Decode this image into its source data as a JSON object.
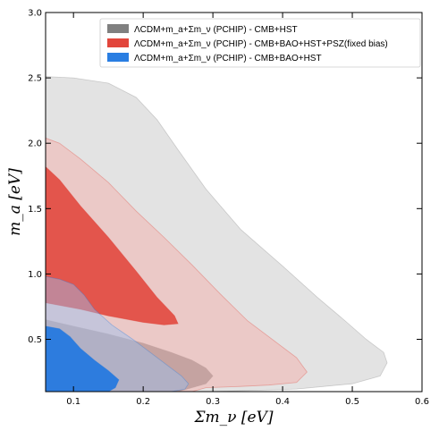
{
  "chart_data": {
    "type": "contour",
    "xlabel": "Σm_ν [eV]",
    "ylabel": "m_a [eV]",
    "xlim": [
      0.06,
      0.6
    ],
    "ylim": [
      0.1,
      3.0
    ],
    "xticks": [
      "0.1",
      "0.2",
      "0.3",
      "0.4",
      "0.5",
      "0.6"
    ],
    "yticks": [
      "0.5",
      "1.0",
      "1.5",
      "2.0",
      "2.5",
      "3.0"
    ],
    "grid": false,
    "legend_position": "top-right",
    "series": [
      {
        "name": "ΛCDM+m_a+Σm_ν (PCHIP) - CMB+HST",
        "color": "#808080",
        "contour_95": [
          [
            0.06,
            2.51
          ],
          [
            0.1,
            2.5
          ],
          [
            0.15,
            2.46
          ],
          [
            0.19,
            2.35
          ],
          [
            0.22,
            2.18
          ],
          [
            0.25,
            1.95
          ],
          [
            0.29,
            1.65
          ],
          [
            0.34,
            1.34
          ],
          [
            0.4,
            1.06
          ],
          [
            0.45,
            0.82
          ],
          [
            0.49,
            0.64
          ],
          [
            0.52,
            0.5
          ],
          [
            0.545,
            0.4
          ],
          [
            0.55,
            0.32
          ],
          [
            0.54,
            0.22
          ],
          [
            0.5,
            0.16
          ],
          [
            0.42,
            0.12
          ],
          [
            0.3,
            0.1
          ],
          [
            0.06,
            0.1
          ]
        ],
        "contour_68": [
          [
            0.06,
            0.65
          ],
          [
            0.1,
            0.6
          ],
          [
            0.15,
            0.54
          ],
          [
            0.2,
            0.47
          ],
          [
            0.24,
            0.4
          ],
          [
            0.27,
            0.34
          ],
          [
            0.29,
            0.28
          ],
          [
            0.3,
            0.22
          ],
          [
            0.29,
            0.16
          ],
          [
            0.25,
            0.1
          ],
          [
            0.06,
            0.1
          ]
        ]
      },
      {
        "name": "ΛCDM+m_a+Σm_ν (PCHIP) - CMB+BAO+HST+PSZ(fixed bias)",
        "color": "#e03c31",
        "contour_95": [
          [
            0.06,
            2.04
          ],
          [
            0.08,
            2.0
          ],
          [
            0.11,
            1.88
          ],
          [
            0.15,
            1.7
          ],
          [
            0.19,
            1.48
          ],
          [
            0.23,
            1.28
          ],
          [
            0.27,
            1.07
          ],
          [
            0.31,
            0.85
          ],
          [
            0.35,
            0.64
          ],
          [
            0.39,
            0.48
          ],
          [
            0.42,
            0.36
          ],
          [
            0.435,
            0.25
          ],
          [
            0.42,
            0.17
          ],
          [
            0.38,
            0.15
          ],
          [
            0.34,
            0.14
          ],
          [
            0.29,
            0.13
          ],
          [
            0.27,
            0.1
          ],
          [
            0.06,
            0.1
          ]
        ],
        "contour_68": [
          [
            0.06,
            1.82
          ],
          [
            0.08,
            1.72
          ],
          [
            0.11,
            1.52
          ],
          [
            0.15,
            1.28
          ],
          [
            0.19,
            1.02
          ],
          [
            0.22,
            0.82
          ],
          [
            0.245,
            0.68
          ],
          [
            0.25,
            0.62
          ],
          [
            0.23,
            0.61
          ],
          [
            0.2,
            0.63
          ],
          [
            0.15,
            0.68
          ],
          [
            0.11,
            0.73
          ],
          [
            0.08,
            0.76
          ],
          [
            0.06,
            0.78
          ]
        ]
      },
      {
        "name": "ΛCDM+m_a+Σm_ν (PCHIP) - CMB+BAO+HST",
        "color": "#1f77e0",
        "contour_95": [
          [
            0.06,
            0.98
          ],
          [
            0.08,
            0.96
          ],
          [
            0.1,
            0.92
          ],
          [
            0.115,
            0.84
          ],
          [
            0.13,
            0.73
          ],
          [
            0.155,
            0.61
          ],
          [
            0.185,
            0.5
          ],
          [
            0.21,
            0.4
          ],
          [
            0.235,
            0.3
          ],
          [
            0.255,
            0.22
          ],
          [
            0.265,
            0.16
          ],
          [
            0.26,
            0.12
          ],
          [
            0.24,
            0.1
          ],
          [
            0.06,
            0.1
          ]
        ],
        "contour_68": [
          [
            0.06,
            0.6
          ],
          [
            0.08,
            0.58
          ],
          [
            0.095,
            0.52
          ],
          [
            0.11,
            0.43
          ],
          [
            0.13,
            0.34
          ],
          [
            0.15,
            0.26
          ],
          [
            0.165,
            0.19
          ],
          [
            0.16,
            0.13
          ],
          [
            0.15,
            0.1
          ],
          [
            0.06,
            0.1
          ]
        ]
      }
    ]
  }
}
